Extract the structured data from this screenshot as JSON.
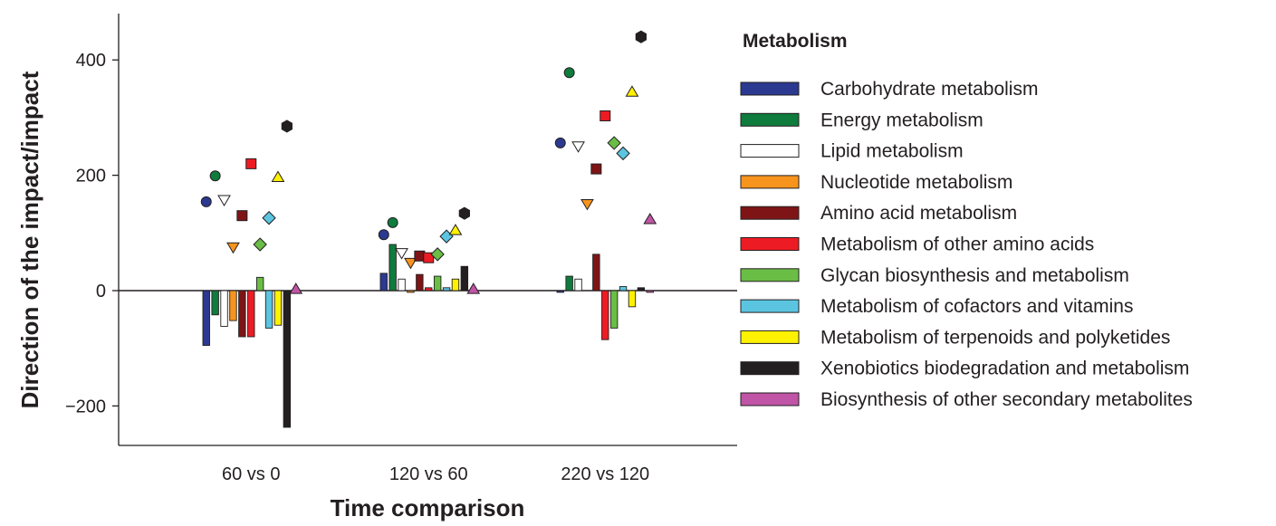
{
  "chart_data": {
    "type": "bar",
    "title": "",
    "xlabel": "Time comparison",
    "ylabel": "Direction of the impact/impact",
    "ylim": [
      -270,
      480
    ],
    "yticks": [
      -200,
      0,
      200,
      400
    ],
    "ytick_labels": [
      "−200",
      "0",
      "200",
      "400"
    ],
    "categories": [
      "60 vs 0",
      "120 vs 60",
      "220 vs 120"
    ],
    "legend_title": "Metabolism",
    "legend_position": "right",
    "grid": false,
    "series": [
      {
        "name": "Carbohydrate metabolism",
        "color": "#2b3990",
        "marker": "circle",
        "bar_values": [
          -95,
          30,
          -3
        ],
        "impact_values": [
          154,
          97,
          256
        ]
      },
      {
        "name": "Energy metabolism",
        "color": "#0f7b3d",
        "marker": "circle",
        "bar_values": [
          -42,
          80,
          25
        ],
        "impact_values": [
          199,
          118,
          378
        ]
      },
      {
        "name": "Lipid metabolism",
        "color": "#ffffff",
        "marker": "triangle-down",
        "bar_values": [
          -62,
          20,
          20
        ],
        "impact_values": [
          157,
          65,
          250
        ]
      },
      {
        "name": "Nucleotide metabolism",
        "color": "#f7941d",
        "marker": "triangle-down",
        "bar_values": [
          -52,
          -3,
          null
        ],
        "impact_values": [
          75,
          48,
          150
        ]
      },
      {
        "name": "Amino acid metabolism",
        "color": "#7f1416",
        "marker": "square",
        "bar_values": [
          -80,
          28,
          63
        ],
        "impact_values": [
          130,
          60,
          211
        ]
      },
      {
        "name": "Metabolism of other amino acids",
        "color": "#ed1c24",
        "marker": "square",
        "bar_values": [
          -80,
          5,
          -85
        ],
        "impact_values": [
          220,
          57,
          303
        ]
      },
      {
        "name": "Glycan biosynthesis and metabolism",
        "color": "#6abd45",
        "marker": "diamond",
        "bar_values": [
          23,
          25,
          -65
        ],
        "impact_values": [
          80,
          63,
          256
        ]
      },
      {
        "name": "Metabolism of cofactors and vitamins",
        "color": "#5bc5e1",
        "marker": "diamond",
        "bar_values": [
          -65,
          5,
          7
        ],
        "impact_values": [
          126,
          94,
          238
        ]
      },
      {
        "name": "Metabolism of terpenoids and polyketides",
        "color": "#fff200",
        "marker": "triangle-up",
        "bar_values": [
          -60,
          20,
          -28
        ],
        "impact_values": [
          197,
          105,
          345
        ]
      },
      {
        "name": "Xenobiotics biodegradation and metabolism",
        "color": "#231f20",
        "marker": "hexagon",
        "bar_values": [
          -237,
          42,
          5
        ],
        "impact_values": [
          285,
          134,
          440
        ]
      },
      {
        "name": "Biosynthesis of other secondary metabolites",
        "color": "#c054a6",
        "marker": "triangle-up",
        "bar_values": [
          null,
          null,
          -3
        ],
        "impact_values": [
          3,
          3,
          124
        ]
      }
    ]
  }
}
